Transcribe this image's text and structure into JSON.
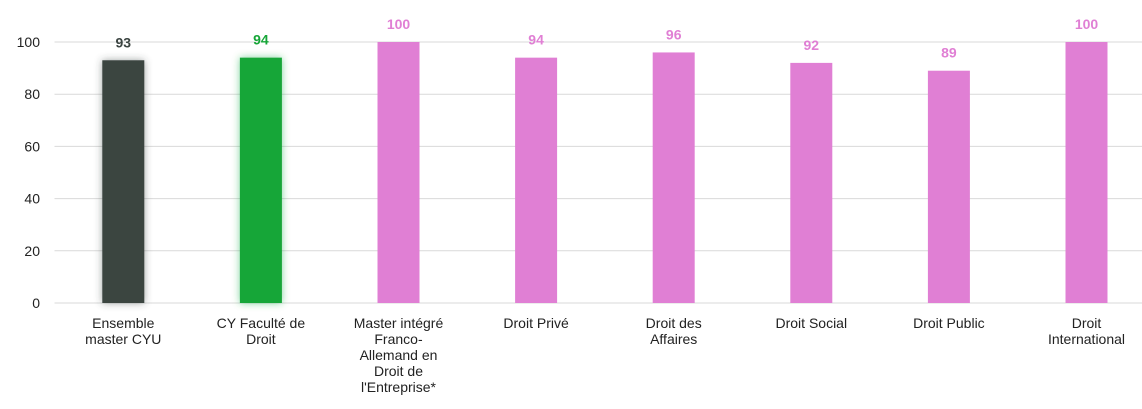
{
  "chart_data": {
    "type": "bar",
    "categories": [
      "Ensemble master CYU",
      "CY Faculté de Droit",
      "Master intégré Franco-Allemand en Droit de l'Entreprise*",
      "Droit Privé",
      "Droit des Affaires",
      "Droit Social",
      "Droit Public",
      "Droit International"
    ],
    "values": [
      93,
      94,
      100,
      94,
      96,
      92,
      89,
      100
    ],
    "colors": [
      "#3b4441",
      "#16a637",
      "#e07fd4",
      "#e07fd4",
      "#e07fd4",
      "#e07fd4",
      "#e07fd4",
      "#e07fd4"
    ],
    "highlight": [
      true,
      true,
      false,
      false,
      false,
      false,
      false,
      false
    ],
    "ylim": [
      0,
      100
    ],
    "yticks": [
      0,
      20,
      40,
      60,
      80,
      100
    ],
    "grid": true
  }
}
